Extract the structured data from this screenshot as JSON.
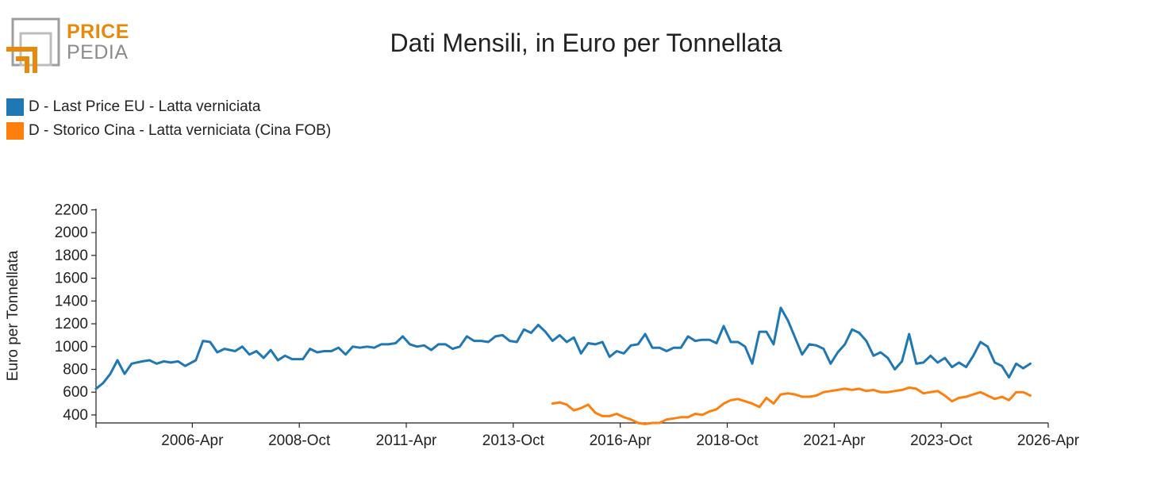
{
  "logo": {
    "word1": "PRICE",
    "word2": "PEDIA",
    "gray_color": "#9e9e9e",
    "orange_color": "#e8890c"
  },
  "chart_data": {
    "type": "line",
    "title": "Dati Mensili, in Euro per Tonnellata",
    "xlabel": "",
    "ylabel": "Euro per Tonnellata",
    "ylim": [
      330,
      2210
    ],
    "yticks": [
      400,
      600,
      800,
      1000,
      1200,
      1400,
      1600,
      1800,
      2000,
      2200
    ],
    "xrange": [
      "2004-01",
      "2026-04"
    ],
    "xticks": [
      "2006-04",
      "2008-10",
      "2011-04",
      "2013-10",
      "2016-04",
      "2018-10",
      "2021-04",
      "2023-10",
      "2026-04"
    ],
    "xtick_labels": [
      "2006-Apr",
      "2008-Oct",
      "2011-Apr",
      "2013-Oct",
      "2016-Apr",
      "2018-Oct",
      "2021-Apr",
      "2023-Oct",
      "2026-Apr"
    ],
    "grid": false,
    "legend_position": "top-left",
    "series": [
      {
        "name": "D - Last Price EU - Latta verniciata",
        "color": "#1f77b4",
        "points": [
          [
            "2004-01",
            630
          ],
          [
            "2004-03",
            680
          ],
          [
            "2004-05",
            760
          ],
          [
            "2004-07",
            880
          ],
          [
            "2004-09",
            760
          ],
          [
            "2004-11",
            850
          ],
          [
            "2005-02",
            870
          ],
          [
            "2005-04",
            880
          ],
          [
            "2005-06",
            850
          ],
          [
            "2005-08",
            870
          ],
          [
            "2005-10",
            860
          ],
          [
            "2005-12",
            870
          ],
          [
            "2006-02",
            830
          ],
          [
            "2006-05",
            880
          ],
          [
            "2006-07",
            1050
          ],
          [
            "2006-09",
            1040
          ],
          [
            "2006-11",
            950
          ],
          [
            "2007-01",
            980
          ],
          [
            "2007-04",
            960
          ],
          [
            "2007-06",
            1000
          ],
          [
            "2007-08",
            930
          ],
          [
            "2007-10",
            960
          ],
          [
            "2007-12",
            900
          ],
          [
            "2008-02",
            970
          ],
          [
            "2008-04",
            880
          ],
          [
            "2008-06",
            920
          ],
          [
            "2008-08",
            890
          ],
          [
            "2008-11",
            890
          ],
          [
            "2009-01",
            980
          ],
          [
            "2009-03",
            950
          ],
          [
            "2009-05",
            960
          ],
          [
            "2009-07",
            960
          ],
          [
            "2009-09",
            990
          ],
          [
            "2009-11",
            930
          ],
          [
            "2010-01",
            1000
          ],
          [
            "2010-03",
            990
          ],
          [
            "2010-05",
            1000
          ],
          [
            "2010-07",
            990
          ],
          [
            "2010-09",
            1020
          ],
          [
            "2010-11",
            1020
          ],
          [
            "2011-01",
            1030
          ],
          [
            "2011-03",
            1090
          ],
          [
            "2011-05",
            1020
          ],
          [
            "2011-07",
            1000
          ],
          [
            "2011-09",
            1010
          ],
          [
            "2011-11",
            970
          ],
          [
            "2012-01",
            1020
          ],
          [
            "2012-03",
            1020
          ],
          [
            "2012-05",
            980
          ],
          [
            "2012-07",
            1000
          ],
          [
            "2012-09",
            1090
          ],
          [
            "2012-11",
            1050
          ],
          [
            "2013-01",
            1050
          ],
          [
            "2013-03",
            1040
          ],
          [
            "2013-05",
            1090
          ],
          [
            "2013-07",
            1100
          ],
          [
            "2013-09",
            1050
          ],
          [
            "2013-11",
            1040
          ],
          [
            "2014-01",
            1150
          ],
          [
            "2014-03",
            1120
          ],
          [
            "2014-05",
            1190
          ],
          [
            "2014-07",
            1130
          ],
          [
            "2014-09",
            1050
          ],
          [
            "2014-11",
            1100
          ],
          [
            "2015-01",
            1040
          ],
          [
            "2015-03",
            1080
          ],
          [
            "2015-05",
            940
          ],
          [
            "2015-07",
            1030
          ],
          [
            "2015-09",
            1020
          ],
          [
            "2015-11",
            1040
          ],
          [
            "2016-01",
            910
          ],
          [
            "2016-03",
            960
          ],
          [
            "2016-05",
            940
          ],
          [
            "2016-07",
            1010
          ],
          [
            "2016-09",
            1020
          ],
          [
            "2016-11",
            1110
          ],
          [
            "2017-01",
            990
          ],
          [
            "2017-03",
            990
          ],
          [
            "2017-05",
            960
          ],
          [
            "2017-07",
            990
          ],
          [
            "2017-09",
            990
          ],
          [
            "2017-11",
            1090
          ],
          [
            "2018-01",
            1050
          ],
          [
            "2018-03",
            1060
          ],
          [
            "2018-05",
            1060
          ],
          [
            "2018-07",
            1030
          ],
          [
            "2018-09",
            1180
          ],
          [
            "2018-11",
            1040
          ],
          [
            "2019-01",
            1040
          ],
          [
            "2019-03",
            1000
          ],
          [
            "2019-05",
            850
          ],
          [
            "2019-07",
            1130
          ],
          [
            "2019-09",
            1130
          ],
          [
            "2019-11",
            1020
          ],
          [
            "2020-01",
            1340
          ],
          [
            "2020-03",
            1230
          ],
          [
            "2020-05",
            1080
          ],
          [
            "2020-07",
            930
          ],
          [
            "2020-09",
            1020
          ],
          [
            "2020-11",
            1010
          ],
          [
            "2021-01",
            980
          ],
          [
            "2021-03",
            850
          ],
          [
            "2021-05",
            950
          ],
          [
            "2021-07",
            1020
          ],
          [
            "2021-09",
            1150
          ],
          [
            "2021-11",
            1120
          ],
          [
            "2022-01",
            1050
          ],
          [
            "2022-03",
            920
          ],
          [
            "2022-05",
            950
          ],
          [
            "2022-07",
            900
          ],
          [
            "2022-09",
            800
          ],
          [
            "2022-11",
            870
          ],
          [
            "2023-01",
            1110
          ],
          [
            "2023-03",
            850
          ],
          [
            "2023-05",
            860
          ],
          [
            "2023-07",
            920
          ],
          [
            "2023-09",
            860
          ],
          [
            "2023-11",
            900
          ],
          [
            "2024-01",
            820
          ],
          [
            "2024-03",
            860
          ],
          [
            "2024-05",
            820
          ],
          [
            "2024-07",
            920
          ],
          [
            "2024-09",
            1040
          ],
          [
            "2024-11",
            1000
          ],
          [
            "2025-01",
            860
          ],
          [
            "2025-03",
            830
          ],
          [
            "2025-05",
            730
          ],
          [
            "2025-07",
            850
          ],
          [
            "2025-09",
            810
          ],
          [
            "2025-11",
            850
          ]
        ]
      },
      {
        "name": "D - Storico Cina - Latta verniciata (Cina FOB)",
        "color": "#ff7f0e",
        "points": [
          [
            "2014-09",
            500
          ],
          [
            "2014-11",
            510
          ],
          [
            "2015-01",
            490
          ],
          [
            "2015-03",
            440
          ],
          [
            "2015-05",
            460
          ],
          [
            "2015-07",
            490
          ],
          [
            "2015-09",
            420
          ],
          [
            "2015-11",
            390
          ],
          [
            "2016-01",
            390
          ],
          [
            "2016-03",
            410
          ],
          [
            "2016-05",
            380
          ],
          [
            "2016-07",
            360
          ],
          [
            "2016-09",
            330
          ],
          [
            "2016-11",
            320
          ],
          [
            "2017-01",
            330
          ],
          [
            "2017-03",
            330
          ],
          [
            "2017-05",
            360
          ],
          [
            "2017-07",
            370
          ],
          [
            "2017-09",
            380
          ],
          [
            "2017-11",
            380
          ],
          [
            "2018-01",
            410
          ],
          [
            "2018-03",
            400
          ],
          [
            "2018-05",
            430
          ],
          [
            "2018-07",
            450
          ],
          [
            "2018-09",
            500
          ],
          [
            "2018-11",
            530
          ],
          [
            "2019-01",
            540
          ],
          [
            "2019-03",
            520
          ],
          [
            "2019-05",
            500
          ],
          [
            "2019-07",
            470
          ],
          [
            "2019-09",
            550
          ],
          [
            "2019-11",
            500
          ],
          [
            "2020-01",
            580
          ],
          [
            "2020-03",
            590
          ],
          [
            "2020-05",
            580
          ],
          [
            "2020-07",
            560
          ],
          [
            "2020-09",
            560
          ],
          [
            "2020-11",
            570
          ],
          [
            "2021-01",
            600
          ],
          [
            "2021-03",
            610
          ],
          [
            "2021-05",
            620
          ],
          [
            "2021-07",
            630
          ],
          [
            "2021-09",
            620
          ],
          [
            "2021-11",
            630
          ],
          [
            "2022-01",
            610
          ],
          [
            "2022-03",
            620
          ],
          [
            "2022-05",
            600
          ],
          [
            "2022-07",
            600
          ],
          [
            "2022-09",
            610
          ],
          [
            "2022-11",
            620
          ],
          [
            "2023-01",
            640
          ],
          [
            "2023-03",
            630
          ],
          [
            "2023-05",
            590
          ],
          [
            "2023-07",
            600
          ],
          [
            "2023-09",
            610
          ],
          [
            "2023-11",
            570
          ],
          [
            "2024-01",
            520
          ],
          [
            "2024-03",
            550
          ],
          [
            "2024-05",
            560
          ],
          [
            "2024-07",
            580
          ],
          [
            "2024-09",
            600
          ],
          [
            "2024-11",
            570
          ],
          [
            "2025-01",
            540
          ],
          [
            "2025-03",
            560
          ],
          [
            "2025-05",
            530
          ],
          [
            "2025-07",
            600
          ],
          [
            "2025-09",
            600
          ],
          [
            "2025-11",
            570
          ]
        ]
      }
    ]
  }
}
